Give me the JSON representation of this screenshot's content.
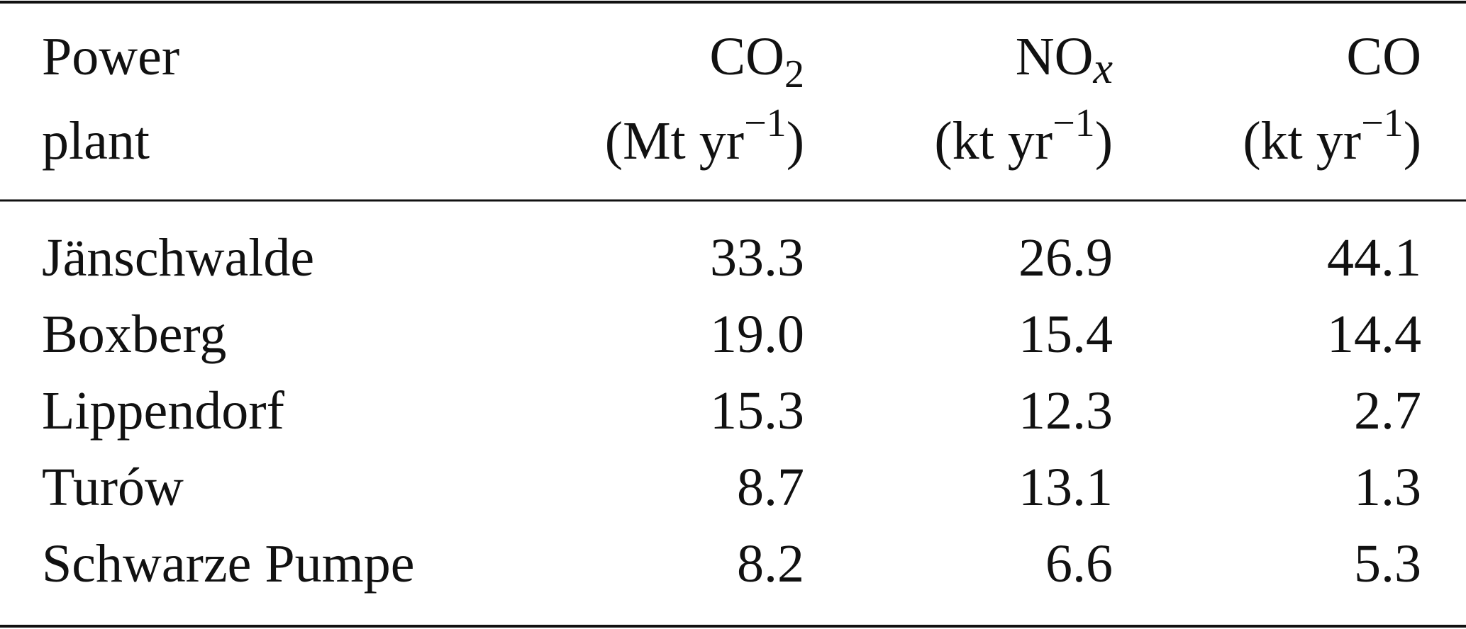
{
  "table": {
    "header": [
      {
        "line1": "Power",
        "line2": "plant"
      },
      {
        "name": "CO",
        "sub": "2",
        "unit": "(Mt yr",
        "sup": "−1",
        "close": ")"
      },
      {
        "name": "NO",
        "sub": "x",
        "unit": "(kt yr",
        "sup": "−1",
        "close": ")"
      },
      {
        "name": "CO",
        "unit": "(kt yr",
        "sup": "−1",
        "close": ")"
      }
    ],
    "rows": [
      [
        "Jänschwalde",
        "33.3",
        "26.9",
        "44.1"
      ],
      [
        "Boxberg",
        "19.0",
        "15.4",
        "14.4"
      ],
      [
        "Lippendorf",
        "15.3",
        "12.3",
        "2.7"
      ],
      [
        "Turów",
        "8.7",
        "13.1",
        "1.3"
      ],
      [
        "Schwarze Pumpe",
        "8.2",
        "6.6",
        "5.3"
      ]
    ]
  }
}
